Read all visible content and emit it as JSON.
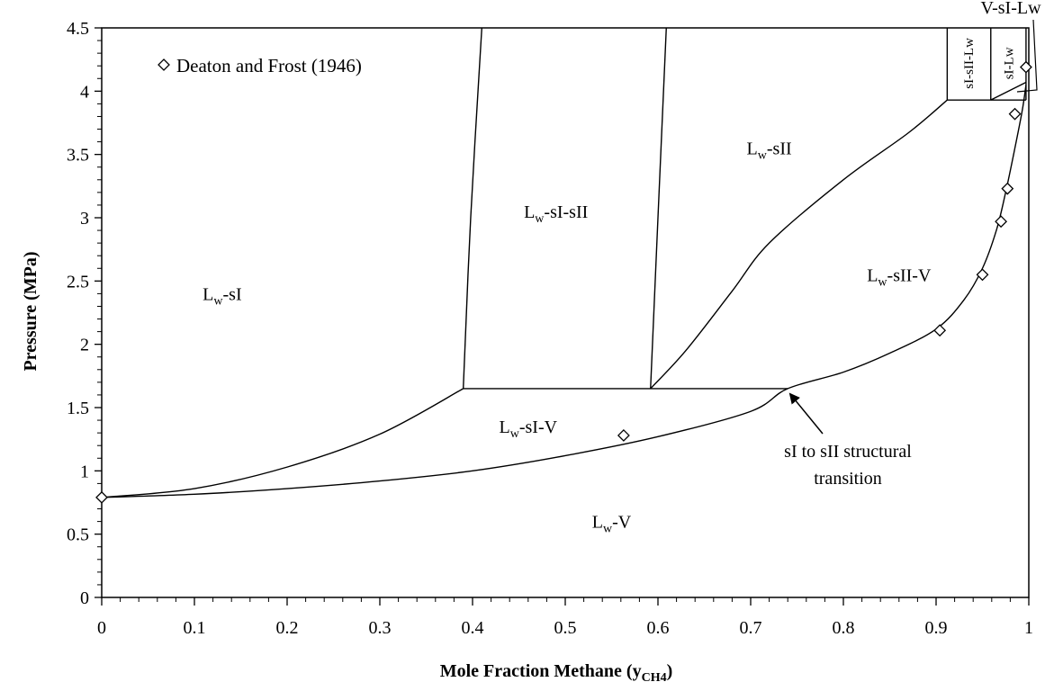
{
  "chart_data": {
    "type": "scatter",
    "title": "",
    "xlabel": "Mole Fraction Methane (y",
    "xlabel_sub": "CH4",
    "xlabel_close": ")",
    "ylabel": "Pressure (MPa)",
    "xlim": [
      0,
      1
    ],
    "ylim": [
      0,
      4.5
    ],
    "x_ticks": [
      0,
      0.1,
      0.2,
      0.3,
      0.4,
      0.5,
      0.6,
      0.7,
      0.8,
      0.9,
      1
    ],
    "x_tick_labels": [
      "0",
      "0.1",
      "0.2",
      "0.3",
      "0.4",
      "0.5",
      "0.6",
      "0.7",
      "0.8",
      "0.9",
      "1"
    ],
    "y_ticks": [
      0,
      0.5,
      1,
      1.5,
      2,
      2.5,
      3,
      3.5,
      4,
      4.5
    ],
    "y_tick_labels": [
      "0",
      "0.5",
      "1",
      "1.5",
      "2",
      "2.5",
      "3",
      "3.5",
      "4",
      "4.5"
    ],
    "grid": false,
    "legend": {
      "placement": "top-left",
      "entries": [
        {
          "marker": "diamond",
          "label": "Deaton and Frost (1946)"
        }
      ]
    },
    "series": [
      {
        "name": "Deaton and Frost (1946)",
        "marker": "diamond",
        "points": [
          [
            0.0,
            0.79
          ],
          [
            0.563,
            1.28
          ],
          [
            0.904,
            2.11
          ],
          [
            0.95,
            2.55
          ],
          [
            0.97,
            2.97
          ],
          [
            0.977,
            3.23
          ],
          [
            0.985,
            3.82
          ],
          [
            0.997,
            4.19
          ]
        ]
      }
    ],
    "boundaries": [
      {
        "id": "dew-curve",
        "points": [
          [
            0,
            0.79
          ],
          [
            0.1,
            0.815
          ],
          [
            0.2,
            0.86
          ],
          [
            0.3,
            0.92
          ],
          [
            0.4,
            1.0
          ],
          [
            0.5,
            1.12
          ],
          [
            0.6,
            1.27
          ],
          [
            0.7,
            1.47
          ],
          [
            0.74,
            1.65
          ],
          [
            0.8,
            1.78
          ],
          [
            0.85,
            1.93
          ],
          [
            0.9,
            2.12
          ],
          [
            0.93,
            2.35
          ],
          [
            0.95,
            2.6
          ],
          [
            0.965,
            2.9
          ],
          [
            0.975,
            3.2
          ],
          [
            0.985,
            3.55
          ],
          [
            0.993,
            3.85
          ],
          [
            0.997,
            4.05
          ]
        ]
      },
      {
        "id": "lw-si-lower",
        "points": [
          [
            0,
            0.79
          ],
          [
            0.1,
            0.86
          ],
          [
            0.2,
            1.03
          ],
          [
            0.3,
            1.29
          ],
          [
            0.39,
            1.65
          ]
        ]
      },
      {
        "id": "three-phase-line",
        "points": [
          [
            0.39,
            1.65
          ],
          [
            0.74,
            1.65
          ]
        ]
      },
      {
        "id": "si-sii-left",
        "points": [
          [
            0.39,
            1.65
          ],
          [
            0.398,
            3.0
          ],
          [
            0.41,
            4.5
          ]
        ]
      },
      {
        "id": "si-sii-right",
        "points": [
          [
            0.592,
            1.65
          ],
          [
            0.6,
            3.0
          ],
          [
            0.609,
            4.5
          ]
        ]
      },
      {
        "id": "sii-v-upper",
        "points": [
          [
            0.592,
            1.65
          ],
          [
            0.63,
            1.95
          ],
          [
            0.68,
            2.42
          ],
          [
            0.72,
            2.8
          ],
          [
            0.8,
            3.3
          ],
          [
            0.87,
            3.67
          ],
          [
            0.912,
            3.93
          ]
        ]
      },
      {
        "id": "upper-plateau",
        "points": [
          [
            0.912,
            3.93
          ],
          [
            0.997,
            3.93
          ]
        ]
      },
      {
        "id": "sI-sII-Lw-divider-left",
        "points": [
          [
            0.912,
            3.93
          ],
          [
            0.912,
            4.5
          ]
        ]
      },
      {
        "id": "sI-sII-Lw-divider-right",
        "points": [
          [
            0.959,
            3.93
          ],
          [
            0.959,
            4.5
          ]
        ]
      },
      {
        "id": "si-lw-right",
        "points": [
          [
            0.997,
            3.93
          ],
          [
            0.997,
            4.5
          ]
        ]
      },
      {
        "id": "small-triangle",
        "points": [
          [
            0.959,
            3.93
          ],
          [
            0.997,
            4.07
          ]
        ]
      }
    ],
    "region_labels": [
      {
        "id": "lw-si",
        "text": "L",
        "sub": "w",
        "rest": "-sI",
        "x": 0.13,
        "y": 2.35
      },
      {
        "id": "lw-si-sii",
        "text": "L",
        "sub": "w",
        "rest": "-sI-sII",
        "x": 0.49,
        "y": 3.0
      },
      {
        "id": "lw-sii",
        "text": "L",
        "sub": "w",
        "rest": "-sII",
        "x": 0.72,
        "y": 3.5
      },
      {
        "id": "lw-sii-v",
        "text": "L",
        "sub": "w",
        "rest": "-sII-V",
        "x": 0.86,
        "y": 2.5
      },
      {
        "id": "lw-si-v",
        "text": "L",
        "sub": "w",
        "rest": "-sI-V",
        "x": 0.46,
        "y": 1.3
      },
      {
        "id": "lw-v",
        "text": "L",
        "sub": "w",
        "rest": "-V",
        "x": 0.55,
        "y": 0.55
      }
    ],
    "vertical_labels": [
      {
        "id": "si-sii-lw",
        "text": "sI-sII-Lw",
        "x": 0.935,
        "y": 4.22
      },
      {
        "id": "si-lw",
        "text": "sI-Lw",
        "x": 0.978,
        "y": 4.22
      }
    ],
    "annotations": [
      {
        "id": "v-si-lw",
        "text": "V-sI-Lw"
      },
      {
        "id": "transition-line1",
        "text": "sI to sII structural"
      },
      {
        "id": "transition-line2",
        "text": "transition"
      }
    ]
  }
}
